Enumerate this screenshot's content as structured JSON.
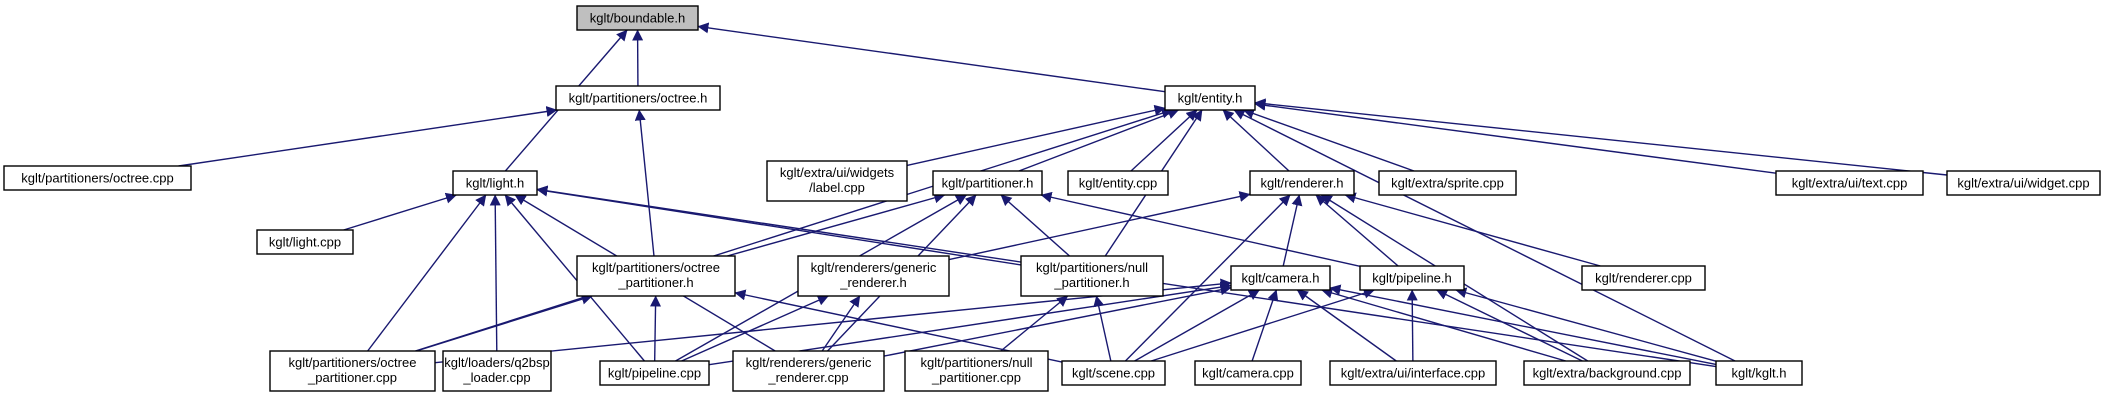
{
  "colors": {
    "edge": "#191970",
    "node_border": "#000000",
    "highlight_fill": "#bfbfbf",
    "background": "#ffffff"
  },
  "nodes": {
    "boundable_h": [
      "kglt/boundable.h"
    ],
    "octree_h": [
      "kglt/partitioners/octree.h"
    ],
    "entity_h": [
      "kglt/entity.h"
    ],
    "octree_cpp": [
      "kglt/partitioners/octree.cpp"
    ],
    "light_h": [
      "kglt/light.h"
    ],
    "label_cpp": [
      "kglt/extra/ui/widgets",
      "/label.cpp"
    ],
    "partitioner_h": [
      "kglt/partitioner.h"
    ],
    "entity_cpp": [
      "kglt/entity.cpp"
    ],
    "renderer_h": [
      "kglt/renderer.h"
    ],
    "sprite_cpp": [
      "kglt/extra/sprite.cpp"
    ],
    "text_cpp": [
      "kglt/extra/ui/text.cpp"
    ],
    "widget_cpp": [
      "kglt/extra/ui/widget.cpp"
    ],
    "light_cpp": [
      "kglt/light.cpp"
    ],
    "octree_part_h": [
      "kglt/partitioners/octree",
      "_partitioner.h"
    ],
    "generic_renderer_h": [
      "kglt/renderers/generic",
      "_renderer.h"
    ],
    "null_part_h": [
      "kglt/partitioners/null",
      "_partitioner.h"
    ],
    "camera_h": [
      "kglt/camera.h"
    ],
    "pipeline_h": [
      "kglt/pipeline.h"
    ],
    "renderer_cpp": [
      "kglt/renderer.cpp"
    ],
    "octree_part_cpp": [
      "kglt/partitioners/octree",
      "_partitioner.cpp"
    ],
    "q2bsp_cpp": [
      "kglt/loaders/q2bsp",
      "_loader.cpp"
    ],
    "pipeline_cpp": [
      "kglt/pipeline.cpp"
    ],
    "generic_renderer_cpp": [
      "kglt/renderers/generic",
      "_renderer.cpp"
    ],
    "null_part_cpp": [
      "kglt/partitioners/null",
      "_partitioner.cpp"
    ],
    "scene_cpp": [
      "kglt/scene.cpp"
    ],
    "camera_cpp": [
      "kglt/camera.cpp"
    ],
    "interface_cpp": [
      "kglt/extra/ui/interface.cpp"
    ],
    "background_cpp": [
      "kglt/extra/background.cpp"
    ],
    "kglt_h": [
      "kglt/kglt.h"
    ]
  },
  "edges": [
    [
      "octree_h",
      "boundable_h"
    ],
    [
      "entity_h",
      "boundable_h"
    ],
    [
      "light_h",
      "boundable_h"
    ],
    [
      "octree_cpp",
      "octree_h"
    ],
    [
      "octree_part_h",
      "octree_h"
    ],
    [
      "octree_part_cpp",
      "entity_h"
    ],
    [
      "label_cpp",
      "entity_h"
    ],
    [
      "partitioner_h",
      "entity_h"
    ],
    [
      "entity_cpp",
      "entity_h"
    ],
    [
      "renderer_h",
      "entity_h"
    ],
    [
      "sprite_cpp",
      "entity_h"
    ],
    [
      "text_cpp",
      "entity_h"
    ],
    [
      "widget_cpp",
      "entity_h"
    ],
    [
      "null_part_h",
      "entity_h"
    ],
    [
      "kglt_h",
      "entity_h"
    ],
    [
      "light_cpp",
      "light_h"
    ],
    [
      "octree_part_cpp",
      "light_h"
    ],
    [
      "q2bsp_cpp",
      "light_h"
    ],
    [
      "pipeline_cpp",
      "light_h"
    ],
    [
      "generic_renderer_cpp",
      "light_h"
    ],
    [
      "null_part_h",
      "light_h"
    ],
    [
      "kglt_h",
      "light_h"
    ],
    [
      "octree_part_h",
      "partitioner_h"
    ],
    [
      "null_part_h",
      "partitioner_h"
    ],
    [
      "pipeline_cpp",
      "partitioner_h"
    ],
    [
      "generic_renderer_cpp",
      "partitioner_h"
    ],
    [
      "pipeline_h",
      "partitioner_h"
    ],
    [
      "generic_renderer_h",
      "renderer_h"
    ],
    [
      "camera_h",
      "renderer_h"
    ],
    [
      "pipeline_h",
      "renderer_h"
    ],
    [
      "renderer_cpp",
      "renderer_h"
    ],
    [
      "scene_cpp",
      "renderer_h"
    ],
    [
      "background_cpp",
      "renderer_h"
    ],
    [
      "octree_part_cpp",
      "octree_part_h"
    ],
    [
      "pipeline_cpp",
      "octree_part_h"
    ],
    [
      "scene_cpp",
      "octree_part_h"
    ],
    [
      "pipeline_cpp",
      "generic_renderer_h"
    ],
    [
      "generic_renderer_cpp",
      "generic_renderer_h"
    ],
    [
      "null_part_cpp",
      "null_part_h"
    ],
    [
      "scene_cpp",
      "null_part_h"
    ],
    [
      "octree_part_cpp",
      "camera_h"
    ],
    [
      "pipeline_cpp",
      "camera_h"
    ],
    [
      "generic_renderer_cpp",
      "camera_h"
    ],
    [
      "scene_cpp",
      "camera_h"
    ],
    [
      "camera_cpp",
      "camera_h"
    ],
    [
      "interface_cpp",
      "camera_h"
    ],
    [
      "background_cpp",
      "camera_h"
    ],
    [
      "kglt_h",
      "camera_h"
    ],
    [
      "scene_cpp",
      "pipeline_h"
    ],
    [
      "interface_cpp",
      "pipeline_h"
    ],
    [
      "background_cpp",
      "pipeline_h"
    ],
    [
      "kglt_h",
      "pipeline_h"
    ]
  ]
}
